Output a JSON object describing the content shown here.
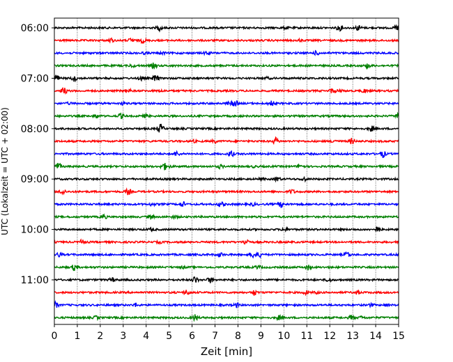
{
  "chart_data": {
    "type": "line",
    "subtype": "helicorder",
    "title": "",
    "xlabel": "Zeit  [min]",
    "ylabel": "UTC (Lokalzeit = UTC + 02:00)",
    "xlim": [
      0,
      15
    ],
    "x_ticks": [
      "0",
      "1",
      "2",
      "3",
      "4",
      "5",
      "6",
      "7",
      "8",
      "9",
      "10",
      "11",
      "12",
      "13",
      "14",
      "15"
    ],
    "y_tick_labels": [
      "06:00",
      "07:00",
      "08:00",
      "09:00",
      "10:00",
      "11:00"
    ],
    "trace_interval_min": 15,
    "start_time": "06:00",
    "traces": [
      "06:00",
      "06:15",
      "06:30",
      "06:45",
      "07:00",
      "07:15",
      "07:30",
      "07:45",
      "08:00",
      "08:15",
      "08:30",
      "08:45",
      "09:00",
      "09:15",
      "09:30",
      "09:45",
      "10:00",
      "10:15",
      "10:30",
      "10:45",
      "11:00",
      "11:15",
      "11:30",
      "11:45"
    ],
    "trace_colors": [
      "#000000",
      "#ff0000",
      "#0000ff",
      "#008000"
    ],
    "grid_x": true,
    "grid_style": "dotted"
  }
}
